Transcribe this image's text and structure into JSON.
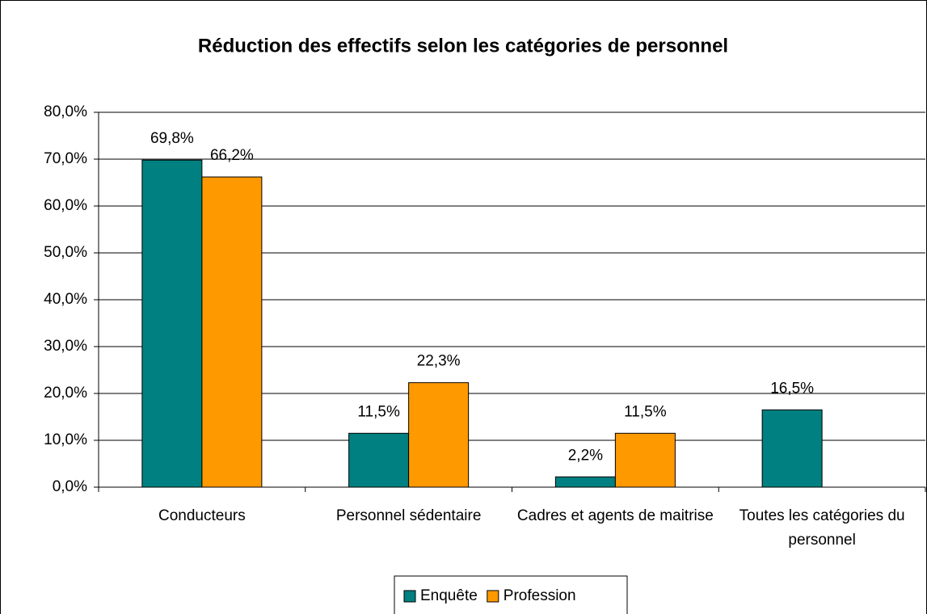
{
  "chart_data": {
    "type": "bar",
    "title": "Réduction des effectifs selon les catégories de personnel",
    "categories": [
      "Conducteurs",
      "Personnel sédentaire",
      "Cadres et agents de maitrise",
      "Toutes les catégories du personnel"
    ],
    "series": [
      {
        "name": "Enquête",
        "color": "#008080",
        "values": [
          69.8,
          11.5,
          2.2,
          16.5
        ],
        "value_labels": [
          "69,8%",
          "11,5%",
          "2,2%",
          "16,5%"
        ]
      },
      {
        "name": "Profession",
        "color": "#FF9900",
        "values": [
          66.2,
          22.3,
          11.5,
          null
        ],
        "value_labels": [
          "66,2%",
          "22,3%",
          "11,5%",
          null
        ]
      }
    ],
    "ylim": [
      0,
      80
    ],
    "yticks": [
      {
        "value": 0,
        "label": "0,0%"
      },
      {
        "value": 10,
        "label": "10,0%"
      },
      {
        "value": 20,
        "label": "20,0%"
      },
      {
        "value": 30,
        "label": "30,0%"
      },
      {
        "value": 40,
        "label": "40,0%"
      },
      {
        "value": 50,
        "label": "50,0%"
      },
      {
        "value": 60,
        "label": "60,0%"
      },
      {
        "value": 70,
        "label": "70,0%"
      },
      {
        "value": 80,
        "label": "80,0%"
      }
    ],
    "grid": true,
    "legend": "bottom"
  }
}
